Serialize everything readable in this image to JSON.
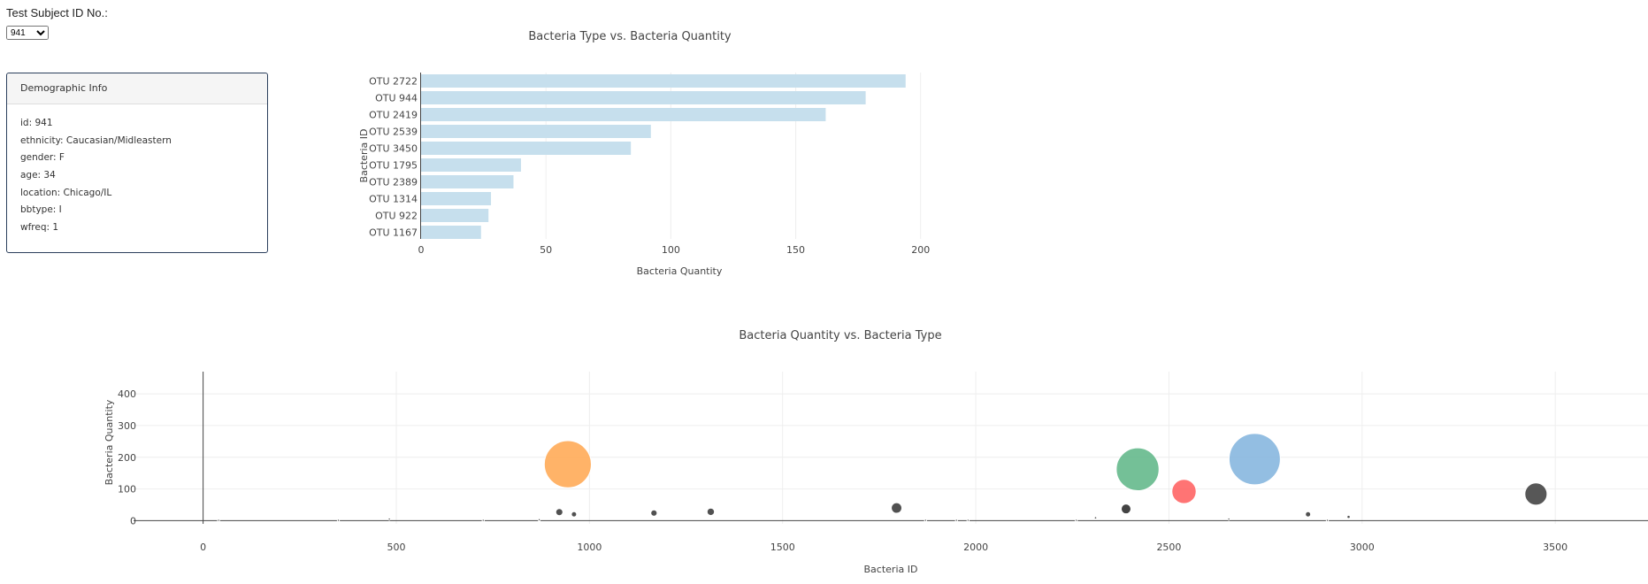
{
  "subject": {
    "label": "Test Subject ID No.:",
    "selected": "941"
  },
  "demographics": {
    "heading": "Demographic Info",
    "rows": [
      "id: 941",
      "ethnicity: Caucasian/Midleastern",
      "gender: F",
      "age: 34",
      "location: Chicago/IL",
      "bbtype: I",
      "wfreq: 1"
    ]
  },
  "colors": {
    "bar": "#c6dfed",
    "axis": "#444444",
    "grid": "#eeeeee"
  },
  "chart_data": [
    {
      "type": "bar",
      "orientation": "horizontal",
      "title": "Bacteria Type vs. Bacteria Quantity",
      "xlabel": "Bacteria Quantity",
      "ylabel": "Bacteria ID",
      "xlim": [
        0,
        204
      ],
      "xticks": [
        0,
        50,
        100,
        150,
        200
      ],
      "categories": [
        "OTU 2722",
        "OTU 944",
        "OTU 2419",
        "OTU 2539",
        "OTU 3450",
        "OTU 1795",
        "OTU 2389",
        "OTU 1314",
        "OTU 922",
        "OTU 1167"
      ],
      "values": [
        194,
        178,
        162,
        92,
        84,
        40,
        37,
        28,
        27,
        24
      ],
      "grid": true
    },
    {
      "type": "scatter",
      "subtype": "bubble",
      "title": "Bacteria Quantity vs. Bacteria Type",
      "xlabel": "Bacteria ID",
      "ylabel": "Bacteria Quantity",
      "xlim": [
        -180,
        3740
      ],
      "ylim": [
        -10,
        470
      ],
      "xticks": [
        0,
        500,
        1000,
        1500,
        2000,
        2500,
        3000,
        3500
      ],
      "yticks": [
        0,
        100,
        200,
        300,
        400
      ],
      "grid": true,
      "points": [
        {
          "x": 40,
          "y": 1,
          "color": "#333333"
        },
        {
          "x": 350,
          "y": 1,
          "color": "#333333"
        },
        {
          "x": 482,
          "y": 5,
          "color": "#333333"
        },
        {
          "x": 725,
          "y": 1,
          "color": "#333333"
        },
        {
          "x": 870,
          "y": 3,
          "color": "#333333"
        },
        {
          "x": 922,
          "y": 27,
          "color": "#333333"
        },
        {
          "x": 944,
          "y": 178,
          "color": "#ffa64d"
        },
        {
          "x": 960,
          "y": 20,
          "color": "#333333"
        },
        {
          "x": 1167,
          "y": 24,
          "color": "#333333"
        },
        {
          "x": 1314,
          "y": 28,
          "color": "#333333"
        },
        {
          "x": 1795,
          "y": 40,
          "color": "#333333"
        },
        {
          "x": 1870,
          "y": 1,
          "color": "#333333"
        },
        {
          "x": 1950,
          "y": 1,
          "color": "#333333"
        },
        {
          "x": 1980,
          "y": 1,
          "color": "#333333"
        },
        {
          "x": 2260,
          "y": 1,
          "color": "#333333"
        },
        {
          "x": 2310,
          "y": 9,
          "color": "#333333"
        },
        {
          "x": 2389,
          "y": 37,
          "color": "#222222"
        },
        {
          "x": 2419,
          "y": 162,
          "color": "#5cb585"
        },
        {
          "x": 2539,
          "y": 92,
          "color": "#ff5c5c"
        },
        {
          "x": 2655,
          "y": 5,
          "color": "#333333"
        },
        {
          "x": 2722,
          "y": 194,
          "color": "#80b3dd"
        },
        {
          "x": 2860,
          "y": 20,
          "color": "#333333"
        },
        {
          "x": 2910,
          "y": 1,
          "color": "#333333"
        },
        {
          "x": 2965,
          "y": 12,
          "color": "#333333"
        },
        {
          "x": 3450,
          "y": 84,
          "color": "#3a3a3a"
        }
      ]
    }
  ]
}
